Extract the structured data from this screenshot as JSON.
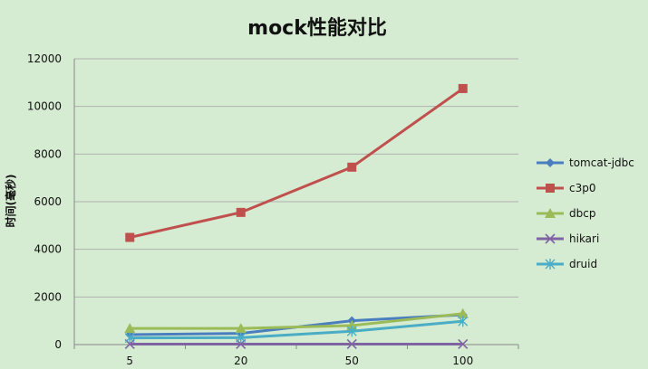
{
  "chart_data": {
    "type": "line",
    "title": "mock性能对比",
    "xlabel": "",
    "ylabel": "时间(毫秒)",
    "categories": [
      "5",
      "20",
      "50",
      "100"
    ],
    "ylim": [
      0,
      12000
    ],
    "yticks": [
      0,
      2000,
      4000,
      6000,
      8000,
      10000,
      12000
    ],
    "grid": true,
    "legend_position": "right",
    "series": [
      {
        "name": "tomcat-jdbc",
        "values": [
          420,
          470,
          1000,
          1250
        ],
        "color": "#4a7ebf",
        "marker": "diamond"
      },
      {
        "name": "c3p0",
        "values": [
          4500,
          5550,
          7450,
          10750
        ],
        "color": "#c0504d",
        "marker": "square"
      },
      {
        "name": "dbcp",
        "values": [
          680,
          680,
          800,
          1300
        ],
        "color": "#9bbb59",
        "marker": "triangle"
      },
      {
        "name": "hikari",
        "values": [
          20,
          20,
          20,
          20
        ],
        "color": "#8064a2",
        "marker": "x"
      },
      {
        "name": "druid",
        "values": [
          280,
          290,
          560,
          980
        ],
        "color": "#4bacc6",
        "marker": "star"
      }
    ],
    "colors": {
      "background": "#d6ecd2",
      "gridline": "#b0b0b0",
      "axis": "#888888"
    }
  }
}
